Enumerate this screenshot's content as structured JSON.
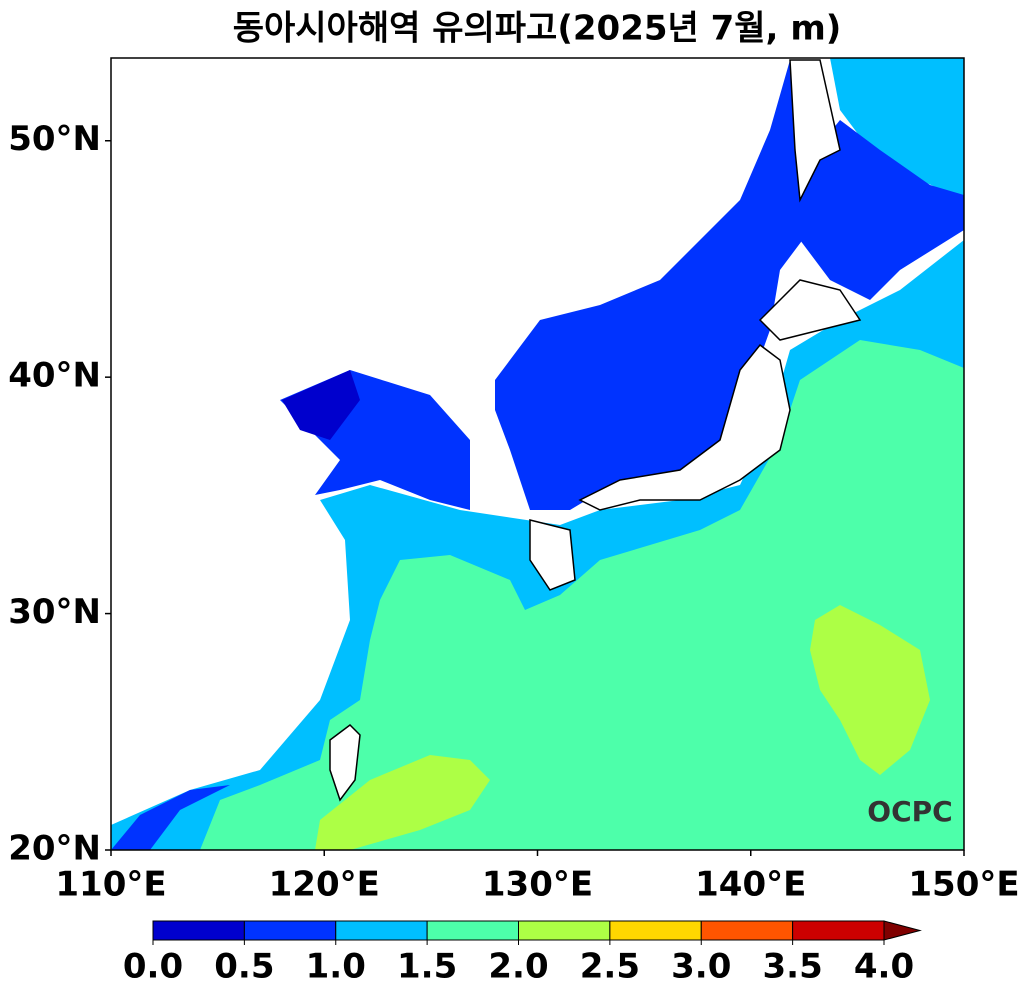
{
  "chart_data": {
    "type": "map",
    "title": "동아시아해역 유의파고(2025년 7월, m)",
    "xlim": [
      110,
      150
    ],
    "ylim": [
      20,
      53.5
    ],
    "xticks": [
      {
        "value": 110,
        "label": "110°E"
      },
      {
        "value": 120,
        "label": "120°E"
      },
      {
        "value": 130,
        "label": "130°E"
      },
      {
        "value": 140,
        "label": "140°E"
      },
      {
        "value": 150,
        "label": "150°E"
      }
    ],
    "yticks": [
      {
        "value": 20,
        "label": "20°N"
      },
      {
        "value": 30,
        "label": "30°N"
      },
      {
        "value": 40,
        "label": "40°N"
      },
      {
        "value": 50,
        "label": "50°N"
      }
    ],
    "colorbar": {
      "levels": [
        {
          "value": 0,
          "label": "0.0"
        },
        {
          "value": 0.5,
          "label": "0.5"
        },
        {
          "value": 1,
          "label": "1.0"
        },
        {
          "value": 1.5,
          "label": "1.5"
        },
        {
          "value": 2,
          "label": "2.0"
        },
        {
          "value": 2.5,
          "label": "2.5"
        },
        {
          "value": 3,
          "label": "3.0"
        },
        {
          "value": 3.5,
          "label": "3.5"
        },
        {
          "value": 4,
          "label": "4.0"
        }
      ],
      "colors": [
        "#0000cd",
        "#0033ff",
        "#00bfff",
        "#4dffaa",
        "#adff45",
        "#ffd700",
        "#ff5500",
        "#cc0000"
      ],
      "extend_color": "#800000"
    },
    "logo": "OCPC"
  }
}
